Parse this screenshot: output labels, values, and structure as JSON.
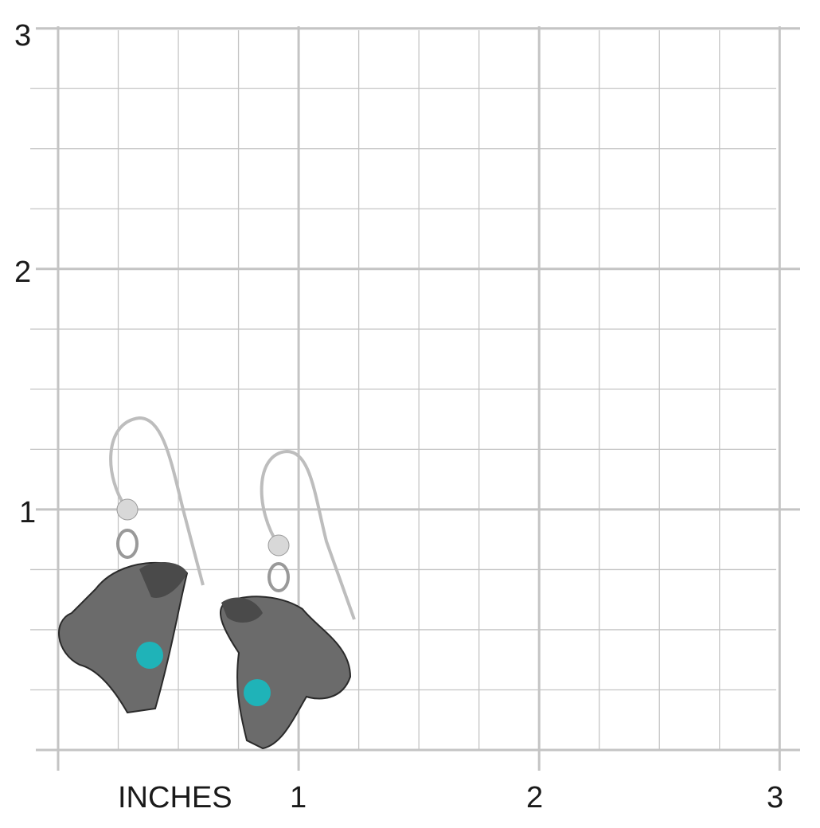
{
  "ruler": {
    "unit_label": "INCHES",
    "x_ticks": [
      "1",
      "2",
      "3"
    ],
    "y_ticks": [
      "3",
      "2",
      "1"
    ],
    "grid_color": "#c4c4c4"
  },
  "product": {
    "stone_color": "#1fb3b8",
    "metal_color": "#6b6b6b"
  }
}
